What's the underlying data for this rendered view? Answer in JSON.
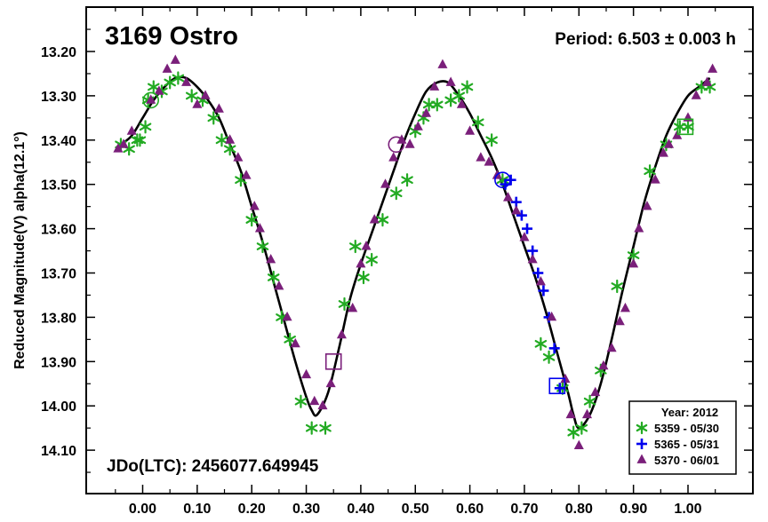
{
  "chart_data": {
    "type": "scatter",
    "title": "3169 Ostro",
    "period_label": "Period: 6.503 ± 0.003 h",
    "epoch_label": "JDo(LTC): 2456077.649945",
    "xlabel": "",
    "ylabel": "Reduced Magnitude(V) alpha(12.1°)",
    "xlim": [
      -0.06,
      1.08
    ],
    "ylim": [
      14.2,
      13.15
    ],
    "y_inverted": true,
    "x_ticks": [
      "0.00",
      "0.10",
      "0.20",
      "0.30",
      "0.40",
      "0.50",
      "0.60",
      "0.70",
      "0.80",
      "0.90",
      "1.00"
    ],
    "y_ticks": [
      "13.20",
      "13.30",
      "13.40",
      "13.50",
      "13.60",
      "13.70",
      "13.80",
      "13.90",
      "14.00",
      "14.10"
    ],
    "legend": {
      "title": "Year: 2012",
      "position": "bottom-right",
      "entries": [
        "5359 - 05/30",
        "5365 - 05/31",
        "5370 - 06/01"
      ]
    },
    "colors": {
      "series1": "#22aa22",
      "series2": "#0000ee",
      "series3": "#7a1f7a",
      "fit": "#000000"
    },
    "series": [
      {
        "name": "5359 - 05/30",
        "marker": "asterisk",
        "x": [
          -0.04,
          -0.025,
          -0.01,
          -0.005,
          0.005,
          0.01,
          0.02,
          0.035,
          0.05,
          0.065,
          0.09,
          0.11,
          0.13,
          0.145,
          0.16,
          0.18,
          0.2,
          0.22,
          0.24,
          0.255,
          0.27,
          0.29,
          0.31,
          0.335,
          0.37,
          0.39,
          0.405,
          0.42,
          0.44,
          0.465,
          0.485,
          0.5,
          0.515,
          0.525,
          0.54,
          0.565,
          0.58,
          0.595,
          0.615,
          0.64,
          0.66,
          0.73,
          0.745,
          0.77,
          0.79,
          0.805,
          0.82,
          0.84,
          0.87,
          0.9,
          0.93,
          0.96,
          0.985,
          1.0,
          1.025,
          1.04
        ],
        "y": [
          13.41,
          13.42,
          13.4,
          13.4,
          13.37,
          13.31,
          13.28,
          13.29,
          13.27,
          13.26,
          13.3,
          13.31,
          13.35,
          13.4,
          13.42,
          13.49,
          13.58,
          13.64,
          13.71,
          13.8,
          13.85,
          13.99,
          14.05,
          14.05,
          13.77,
          13.64,
          13.71,
          13.67,
          13.58,
          13.52,
          13.49,
          13.38,
          13.35,
          13.32,
          13.32,
          13.31,
          13.3,
          13.28,
          13.36,
          13.4,
          13.49,
          13.86,
          13.89,
          13.96,
          14.06,
          14.05,
          13.99,
          13.92,
          13.73,
          13.66,
          13.47,
          13.41,
          13.37,
          13.37,
          13.28,
          13.28
        ]
      },
      {
        "name": "5365 - 05/31",
        "marker": "plus",
        "x": [
          0.665,
          0.675,
          0.685,
          0.695,
          0.705,
          0.715,
          0.725,
          0.735,
          0.745,
          0.755,
          0.765
        ],
        "y": [
          13.5,
          13.49,
          13.54,
          13.57,
          13.6,
          13.65,
          13.7,
          13.74,
          13.8,
          13.87,
          13.96
        ]
      },
      {
        "name": "5370 - 06/01",
        "marker": "triangle",
        "x": [
          -0.045,
          -0.035,
          -0.02,
          0.015,
          0.03,
          0.045,
          0.06,
          0.08,
          0.1,
          0.115,
          0.14,
          0.16,
          0.175,
          0.19,
          0.205,
          0.215,
          0.235,
          0.25,
          0.265,
          0.28,
          0.3,
          0.315,
          0.33,
          0.345,
          0.365,
          0.385,
          0.4,
          0.41,
          0.425,
          0.445,
          0.46,
          0.475,
          0.49,
          0.505,
          0.52,
          0.535,
          0.55,
          0.565,
          0.585,
          0.6,
          0.62,
          0.635,
          0.65,
          0.67,
          0.685,
          0.7,
          0.715,
          0.73,
          0.75,
          0.775,
          0.785,
          0.8,
          0.815,
          0.83,
          0.845,
          0.86,
          0.875,
          0.885,
          0.9,
          0.91,
          0.925,
          0.94,
          0.955,
          0.965,
          0.98,
          1.0,
          1.015,
          1.035,
          1.045
        ],
        "y": [
          13.42,
          13.41,
          13.38,
          13.31,
          13.29,
          13.24,
          13.22,
          13.27,
          13.32,
          13.3,
          13.33,
          13.4,
          13.44,
          13.48,
          13.55,
          13.6,
          13.67,
          13.73,
          13.8,
          13.86,
          13.93,
          13.99,
          14.0,
          13.95,
          13.84,
          13.78,
          13.68,
          13.64,
          13.58,
          13.5,
          13.44,
          13.4,
          13.41,
          13.37,
          13.34,
          13.28,
          13.23,
          13.27,
          13.32,
          13.38,
          13.44,
          13.45,
          13.48,
          13.53,
          13.56,
          13.62,
          13.67,
          13.72,
          13.8,
          13.94,
          14.02,
          14.09,
          14.02,
          13.97,
          13.91,
          13.87,
          13.81,
          13.78,
          13.68,
          13.6,
          13.55,
          13.49,
          13.43,
          13.41,
          13.39,
          13.35,
          13.3,
          13.27,
          13.24
        ]
      }
    ],
    "marked_points": [
      {
        "x": 0.015,
        "y": 13.31,
        "shape": "circle",
        "series": "5359 - 05/30"
      },
      {
        "x": 0.465,
        "y": 13.41,
        "shape": "circle",
        "series": "5370 - 06/01"
      },
      {
        "x": 0.66,
        "y": 13.49,
        "shape": "circle",
        "series": "5365 - 05/31"
      },
      {
        "x": 0.35,
        "y": 13.9,
        "shape": "square",
        "series": "5370 - 06/01"
      },
      {
        "x": 0.76,
        "y": 13.955,
        "shape": "square",
        "series": "5365 - 05/31"
      },
      {
        "x": 0.995,
        "y": 13.37,
        "shape": "square",
        "series": "5359 - 05/30"
      }
    ],
    "fit_curve": {
      "x": [
        -0.04,
        -0.02,
        0.0,
        0.02,
        0.04,
        0.06,
        0.08,
        0.1,
        0.12,
        0.14,
        0.16,
        0.18,
        0.2,
        0.22,
        0.24,
        0.26,
        0.28,
        0.3,
        0.31,
        0.32,
        0.34,
        0.36,
        0.38,
        0.4,
        0.42,
        0.44,
        0.46,
        0.48,
        0.5,
        0.52,
        0.54,
        0.56,
        0.58,
        0.6,
        0.62,
        0.64,
        0.66,
        0.68,
        0.7,
        0.72,
        0.74,
        0.76,
        0.78,
        0.79,
        0.8,
        0.82,
        0.84,
        0.86,
        0.88,
        0.9,
        0.92,
        0.94,
        0.96,
        0.98,
        1.0,
        1.02,
        1.04
      ],
      "y": [
        13.41,
        13.39,
        13.35,
        13.31,
        13.28,
        13.26,
        13.26,
        13.28,
        13.31,
        13.35,
        13.41,
        13.47,
        13.55,
        13.63,
        13.72,
        13.81,
        13.9,
        13.98,
        14.01,
        14.02,
        13.97,
        13.87,
        13.76,
        13.68,
        13.61,
        13.54,
        13.47,
        13.4,
        13.34,
        13.29,
        13.27,
        13.27,
        13.3,
        13.34,
        13.39,
        13.44,
        13.5,
        13.57,
        13.64,
        13.71,
        13.79,
        13.88,
        13.97,
        14.02,
        14.05,
        14.02,
        13.95,
        13.85,
        13.74,
        13.64,
        13.54,
        13.46,
        13.39,
        13.34,
        13.3,
        13.28,
        13.26
      ]
    }
  }
}
